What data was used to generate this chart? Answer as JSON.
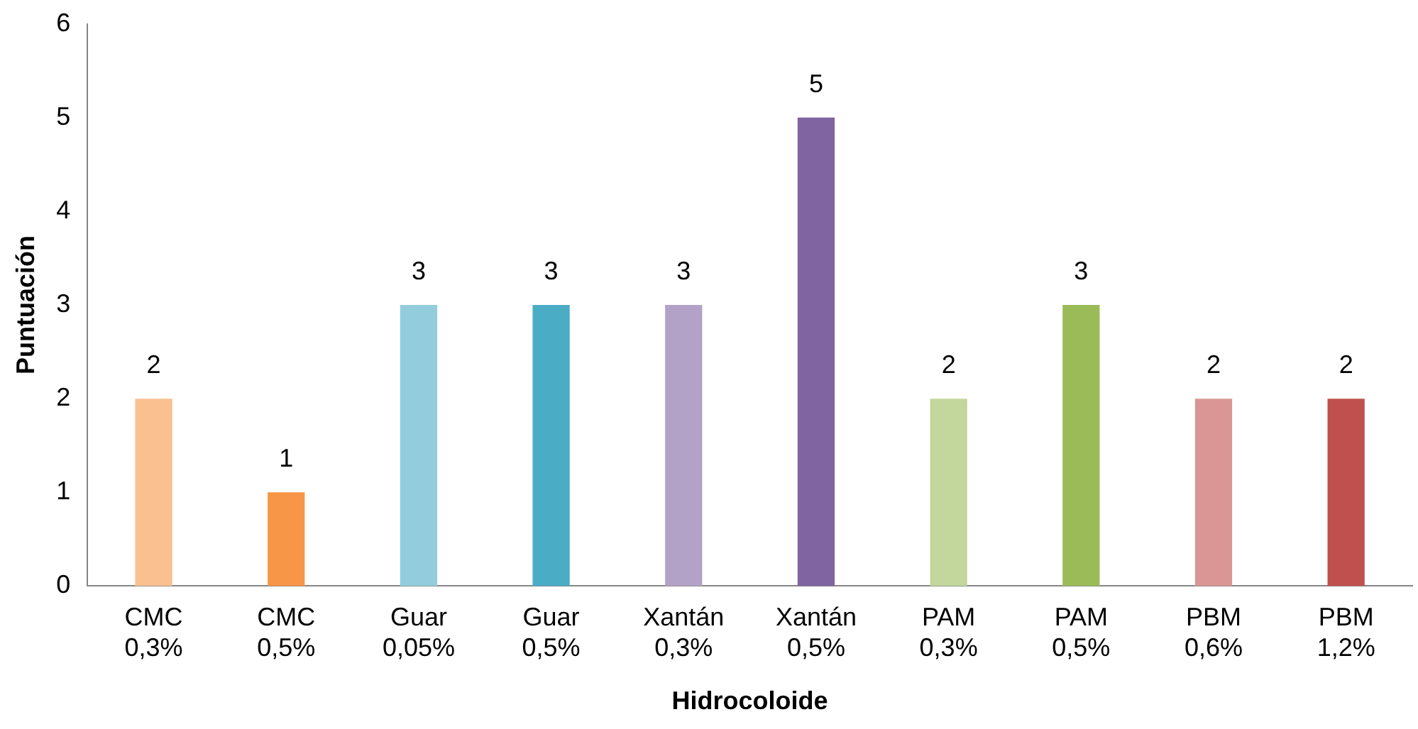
{
  "chart_data": {
    "type": "bar",
    "xlabel": "Hidrocoloide",
    "ylabel": "Puntuación",
    "categories": [
      "CMC\n0,3%",
      "CMC\n0,5%",
      "Guar\n0,05%",
      "Guar\n0,5%",
      "Xantán\n0,3%",
      "Xantán\n0,5%",
      "PAM\n0,3%",
      "PAM\n0,5%",
      "PBM\n0,6%",
      "PBM\n1,2%"
    ],
    "values": [
      2,
      1,
      3,
      3,
      3,
      5,
      2,
      3,
      2,
      2
    ],
    "colors": [
      "#fac090",
      "#f79646",
      "#93cddd",
      "#4bacc6",
      "#b3a2c7",
      "#8064a2",
      "#c3d69b",
      "#9bbb59",
      "#d99694",
      "#c0504d"
    ],
    "ylim": [
      0,
      6
    ],
    "yticks": [
      0,
      1,
      2,
      3,
      4,
      5,
      6
    ],
    "grid": false,
    "legend": false,
    "data_labels": true
  }
}
